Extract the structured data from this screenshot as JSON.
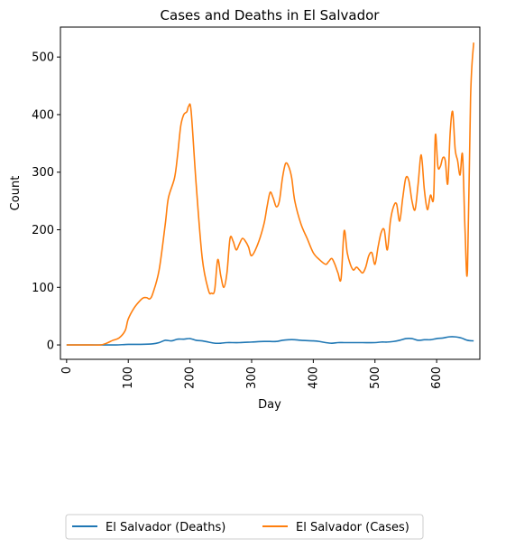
{
  "chart_data": {
    "type": "line",
    "title": "Cases and Deaths in El Salvador",
    "xlabel": "Day",
    "ylabel": "Count",
    "xlim": [
      -10,
      670
    ],
    "ylim": [
      -25,
      552
    ],
    "xticks": [
      0,
      100,
      200,
      300,
      400,
      500,
      600
    ],
    "yticks": [
      0,
      100,
      200,
      300,
      400,
      500
    ],
    "grid": false,
    "legend_position": "bottom",
    "legend_columns": 2,
    "series": [
      {
        "name": "El Salvador (Deaths)",
        "color": "#1f77b4",
        "x": [
          0,
          20,
          40,
          60,
          80,
          100,
          120,
          140,
          150,
          160,
          170,
          180,
          190,
          200,
          210,
          220,
          230,
          240,
          250,
          260,
          280,
          300,
          320,
          330,
          340,
          350,
          360,
          370,
          380,
          400,
          410,
          420,
          430,
          440,
          450,
          460,
          470,
          480,
          500,
          510,
          520,
          530,
          540,
          550,
          560,
          570,
          580,
          590,
          600,
          610,
          620,
          630,
          640,
          650,
          660
        ],
        "y": [
          0,
          0,
          0,
          0,
          0,
          1,
          1,
          2,
          4,
          8,
          7,
          10,
          10,
          11,
          8,
          7,
          5,
          3,
          3,
          4,
          4,
          5,
          6,
          6,
          6,
          8,
          9,
          9,
          8,
          7,
          6,
          4,
          3,
          4,
          4,
          4,
          4,
          4,
          4,
          5,
          5,
          6,
          8,
          11,
          11,
          8,
          9,
          9,
          11,
          12,
          14,
          14,
          12,
          8,
          7
        ]
      },
      {
        "name": "El Salvador (Cases)",
        "color": "#ff7f0e",
        "x": [
          0,
          20,
          40,
          55,
          65,
          75,
          85,
          95,
          100,
          110,
          120,
          125,
          130,
          135,
          140,
          150,
          160,
          165,
          175,
          180,
          185,
          190,
          195,
          198,
          202,
          210,
          220,
          230,
          235,
          240,
          245,
          250,
          255,
          260,
          265,
          270,
          275,
          280,
          285,
          290,
          295,
          300,
          310,
          320,
          325,
          330,
          335,
          340,
          345,
          350,
          355,
          360,
          365,
          370,
          380,
          390,
          400,
          410,
          420,
          425,
          430,
          435,
          440,
          445,
          450,
          455,
          460,
          465,
          470,
          475,
          480,
          485,
          490,
          495,
          500,
          505,
          510,
          515,
          520,
          525,
          530,
          535,
          540,
          545,
          550,
          555,
          560,
          565,
          570,
          575,
          580,
          585,
          590,
          595,
          598,
          602,
          606,
          610,
          614,
          618,
          622,
          626,
          630,
          634,
          638,
          642,
          646,
          650,
          655,
          660
        ],
        "y": [
          0,
          0,
          0,
          0,
          3,
          8,
          12,
          25,
          45,
          65,
          78,
          82,
          82,
          80,
          90,
          130,
          210,
          255,
          290,
          330,
          380,
          400,
          405,
          415,
          405,
          280,
          150,
          95,
          90,
          95,
          148,
          120,
          100,
          125,
          185,
          180,
          165,
          175,
          185,
          180,
          170,
          155,
          175,
          210,
          240,
          265,
          255,
          240,
          250,
          290,
          315,
          310,
          290,
          250,
          210,
          185,
          160,
          148,
          140,
          145,
          150,
          140,
          125,
          115,
          198,
          160,
          140,
          130,
          135,
          130,
          125,
          135,
          155,
          160,
          140,
          170,
          195,
          200,
          165,
          215,
          240,
          245,
          215,
          255,
          290,
          285,
          250,
          235,
          280,
          330,
          270,
          235,
          260,
          255,
          365,
          310,
          310,
          325,
          320,
          280,
          370,
          405,
          340,
          320,
          295,
          330,
          200,
          130,
          430,
          525
        ]
      }
    ]
  }
}
